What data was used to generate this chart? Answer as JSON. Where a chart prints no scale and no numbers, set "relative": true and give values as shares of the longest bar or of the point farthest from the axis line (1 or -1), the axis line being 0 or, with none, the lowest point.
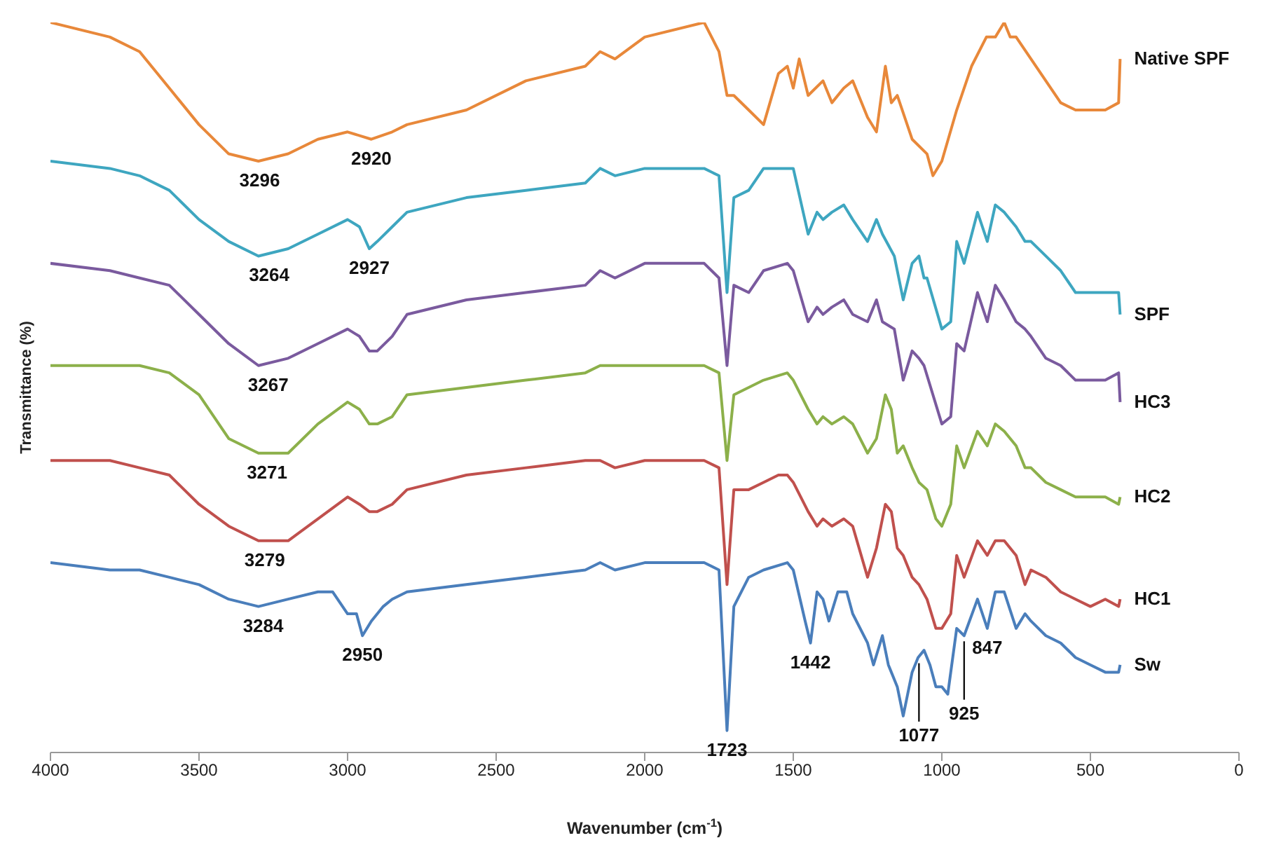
{
  "chart_data": {
    "type": "line",
    "relative": true,
    "xlabel": "Wavenumber (cm$^{-1}$)",
    "ylabel": "Transmittance (%)",
    "xlim": [
      4000,
      0
    ],
    "xticks": [
      4000,
      3500,
      3000,
      2500,
      2000,
      1500,
      1000,
      500,
      0
    ],
    "legend": false,
    "series": [
      {
        "name": "Native SPF",
        "color": "#e8883a",
        "x": [
          4000,
          3800,
          3700,
          3600,
          3500,
          3400,
          3300,
          3200,
          3100,
          3000,
          2920,
          2850,
          2800,
          2600,
          2400,
          2200,
          2150,
          2100,
          2000,
          1800,
          1750,
          1723,
          1700,
          1650,
          1600,
          1550,
          1520,
          1500,
          1480,
          1450,
          1400,
          1370,
          1330,
          1300,
          1250,
          1220,
          1190,
          1170,
          1150,
          1100,
          1050,
          1030,
          1000,
          950,
          900,
          850,
          820,
          790,
          770,
          750,
          700,
          650,
          600,
          550,
          500,
          450,
          405,
          400
        ],
        "values": [
          1.0,
          0.98,
          0.96,
          0.91,
          0.86,
          0.82,
          0.81,
          0.82,
          0.84,
          0.85,
          0.84,
          0.85,
          0.86,
          0.88,
          0.92,
          0.94,
          0.96,
          0.95,
          0.98,
          1.0,
          0.96,
          0.9,
          0.9,
          0.88,
          0.86,
          0.93,
          0.94,
          0.91,
          0.95,
          0.9,
          0.92,
          0.89,
          0.91,
          0.92,
          0.87,
          0.85,
          0.94,
          0.89,
          0.9,
          0.84,
          0.82,
          0.79,
          0.81,
          0.88,
          0.94,
          0.98,
          0.98,
          1.0,
          0.98,
          0.98,
          0.95,
          0.92,
          0.89,
          0.88,
          0.88,
          0.88,
          0.89,
          0.95
        ]
      },
      {
        "name": "SPF",
        "color": "#3ea6c0",
        "x": [
          4000,
          3800,
          3700,
          3600,
          3500,
          3400,
          3300,
          3200,
          3100,
          3000,
          2960,
          2927,
          2900,
          2850,
          2800,
          2600,
          2400,
          2200,
          2150,
          2100,
          2000,
          1800,
          1750,
          1723,
          1700,
          1650,
          1600,
          1520,
          1500,
          1450,
          1420,
          1400,
          1370,
          1330,
          1300,
          1250,
          1220,
          1200,
          1160,
          1130,
          1100,
          1077,
          1060,
          1050,
          1000,
          970,
          950,
          925,
          880,
          847,
          820,
          790,
          750,
          720,
          700,
          650,
          600,
          550,
          500,
          450,
          405,
          400
        ],
        "values": [
          0.81,
          0.8,
          0.79,
          0.77,
          0.73,
          0.7,
          0.68,
          0.69,
          0.71,
          0.73,
          0.72,
          0.69,
          0.7,
          0.72,
          0.74,
          0.76,
          0.77,
          0.78,
          0.8,
          0.79,
          0.8,
          0.8,
          0.79,
          0.63,
          0.76,
          0.77,
          0.8,
          0.8,
          0.8,
          0.71,
          0.74,
          0.73,
          0.74,
          0.75,
          0.73,
          0.7,
          0.73,
          0.71,
          0.68,
          0.62,
          0.67,
          0.68,
          0.65,
          0.65,
          0.58,
          0.59,
          0.7,
          0.67,
          0.74,
          0.7,
          0.75,
          0.74,
          0.72,
          0.7,
          0.7,
          0.68,
          0.66,
          0.63,
          0.63,
          0.63,
          0.63,
          0.6
        ]
      },
      {
        "name": "HC3",
        "color": "#7a5a9e",
        "x": [
          4000,
          3800,
          3700,
          3600,
          3500,
          3400,
          3300,
          3200,
          3100,
          3000,
          2960,
          2927,
          2900,
          2850,
          2800,
          2600,
          2400,
          2200,
          2150,
          2100,
          2000,
          1800,
          1750,
          1723,
          1700,
          1650,
          1600,
          1520,
          1500,
          1450,
          1420,
          1400,
          1370,
          1330,
          1300,
          1250,
          1220,
          1200,
          1160,
          1130,
          1100,
          1077,
          1060,
          1000,
          970,
          950,
          925,
          880,
          847,
          820,
          790,
          750,
          720,
          700,
          650,
          600,
          550,
          500,
          450,
          405,
          400
        ],
        "values": [
          0.67,
          0.66,
          0.65,
          0.64,
          0.6,
          0.56,
          0.53,
          0.54,
          0.56,
          0.58,
          0.57,
          0.55,
          0.55,
          0.57,
          0.6,
          0.62,
          0.63,
          0.64,
          0.66,
          0.65,
          0.67,
          0.67,
          0.65,
          0.53,
          0.64,
          0.63,
          0.66,
          0.67,
          0.66,
          0.59,
          0.61,
          0.6,
          0.61,
          0.62,
          0.6,
          0.59,
          0.62,
          0.59,
          0.58,
          0.51,
          0.55,
          0.54,
          0.53,
          0.45,
          0.46,
          0.56,
          0.55,
          0.63,
          0.59,
          0.64,
          0.62,
          0.59,
          0.58,
          0.57,
          0.54,
          0.53,
          0.51,
          0.51,
          0.51,
          0.52,
          0.48
        ]
      },
      {
        "name": "HC2",
        "color": "#8cb04a",
        "x": [
          4000,
          3800,
          3700,
          3600,
          3500,
          3400,
          3300,
          3200,
          3100,
          3000,
          2960,
          2927,
          2900,
          2850,
          2800,
          2600,
          2400,
          2200,
          2150,
          2100,
          2000,
          1800,
          1750,
          1723,
          1700,
          1650,
          1600,
          1520,
          1500,
          1450,
          1420,
          1400,
          1370,
          1330,
          1300,
          1250,
          1220,
          1190,
          1170,
          1150,
          1130,
          1100,
          1077,
          1050,
          1020,
          1000,
          970,
          950,
          925,
          880,
          847,
          820,
          790,
          750,
          720,
          700,
          650,
          600,
          550,
          500,
          450,
          405,
          400
        ],
        "values": [
          0.53,
          0.53,
          0.53,
          0.52,
          0.49,
          0.43,
          0.41,
          0.41,
          0.45,
          0.48,
          0.47,
          0.45,
          0.45,
          0.46,
          0.49,
          0.5,
          0.51,
          0.52,
          0.53,
          0.53,
          0.53,
          0.53,
          0.52,
          0.4,
          0.49,
          0.5,
          0.51,
          0.52,
          0.51,
          0.47,
          0.45,
          0.46,
          0.45,
          0.46,
          0.45,
          0.41,
          0.43,
          0.49,
          0.47,
          0.41,
          0.42,
          0.39,
          0.37,
          0.36,
          0.32,
          0.31,
          0.34,
          0.42,
          0.39,
          0.44,
          0.42,
          0.45,
          0.44,
          0.42,
          0.39,
          0.39,
          0.37,
          0.36,
          0.35,
          0.35,
          0.35,
          0.34,
          0.35
        ]
      },
      {
        "name": "HC1",
        "color": "#c0504d",
        "x": [
          4000,
          3800,
          3700,
          3600,
          3500,
          3400,
          3300,
          3200,
          3100,
          3000,
          2960,
          2927,
          2900,
          2850,
          2800,
          2600,
          2400,
          2200,
          2150,
          2100,
          2000,
          1800,
          1750,
          1723,
          1700,
          1650,
          1600,
          1550,
          1520,
          1500,
          1450,
          1420,
          1400,
          1370,
          1330,
          1300,
          1250,
          1220,
          1190,
          1170,
          1150,
          1130,
          1100,
          1077,
          1050,
          1020,
          1000,
          970,
          950,
          925,
          880,
          847,
          820,
          790,
          750,
          720,
          700,
          650,
          600,
          550,
          500,
          450,
          405,
          400
        ],
        "values": [
          0.4,
          0.4,
          0.39,
          0.38,
          0.34,
          0.31,
          0.29,
          0.29,
          0.32,
          0.35,
          0.34,
          0.33,
          0.33,
          0.34,
          0.36,
          0.38,
          0.39,
          0.4,
          0.4,
          0.39,
          0.4,
          0.4,
          0.39,
          0.23,
          0.36,
          0.36,
          0.37,
          0.38,
          0.38,
          0.37,
          0.33,
          0.31,
          0.32,
          0.31,
          0.32,
          0.31,
          0.24,
          0.28,
          0.34,
          0.33,
          0.28,
          0.27,
          0.24,
          0.23,
          0.21,
          0.17,
          0.17,
          0.19,
          0.27,
          0.24,
          0.29,
          0.27,
          0.29,
          0.29,
          0.27,
          0.23,
          0.25,
          0.24,
          0.22,
          0.21,
          0.2,
          0.21,
          0.2,
          0.21
        ]
      },
      {
        "name": "Sw",
        "color": "#4a7ebb",
        "x": [
          4000,
          3800,
          3700,
          3600,
          3500,
          3400,
          3300,
          3200,
          3100,
          3050,
          3000,
          2970,
          2950,
          2920,
          2880,
          2850,
          2800,
          2600,
          2400,
          2200,
          2150,
          2100,
          2000,
          1800,
          1750,
          1723,
          1700,
          1650,
          1600,
          1520,
          1500,
          1460,
          1442,
          1420,
          1400,
          1380,
          1350,
          1320,
          1300,
          1250,
          1230,
          1200,
          1180,
          1150,
          1130,
          1100,
          1080,
          1060,
          1040,
          1020,
          1000,
          980,
          950,
          925,
          880,
          847,
          820,
          790,
          750,
          720,
          700,
          650,
          600,
          550,
          500,
          450,
          405,
          400
        ],
        "values": [
          0.26,
          0.25,
          0.25,
          0.24,
          0.23,
          0.21,
          0.2,
          0.21,
          0.22,
          0.22,
          0.19,
          0.19,
          0.16,
          0.18,
          0.2,
          0.21,
          0.22,
          0.23,
          0.24,
          0.25,
          0.26,
          0.25,
          0.26,
          0.26,
          0.25,
          0.03,
          0.2,
          0.24,
          0.25,
          0.26,
          0.25,
          0.18,
          0.15,
          0.22,
          0.21,
          0.18,
          0.22,
          0.22,
          0.19,
          0.15,
          0.12,
          0.16,
          0.12,
          0.09,
          0.05,
          0.11,
          0.13,
          0.14,
          0.12,
          0.09,
          0.09,
          0.08,
          0.17,
          0.16,
          0.21,
          0.17,
          0.22,
          0.22,
          0.17,
          0.19,
          0.18,
          0.16,
          0.15,
          0.13,
          0.12,
          0.11,
          0.11,
          0.12
        ]
      }
    ],
    "annotations": [
      {
        "text": "3296",
        "x": 3296,
        "y": 0.81
      },
      {
        "text": "2920",
        "x": 2920,
        "y": 0.84
      },
      {
        "text": "3264",
        "x": 3264,
        "y": 0.68
      },
      {
        "text": "2927",
        "x": 2927,
        "y": 0.69
      },
      {
        "text": "3267",
        "x": 3267,
        "y": 0.53
      },
      {
        "text": "3271",
        "x": 3271,
        "y": 0.41
      },
      {
        "text": "3279",
        "x": 3279,
        "y": 0.29
      },
      {
        "text": "3284",
        "x": 3284,
        "y": 0.2
      },
      {
        "text": "2950",
        "x": 2950,
        "y": 0.16
      },
      {
        "text": "1723",
        "x": 1723,
        "y": 0.03
      },
      {
        "text": "1442",
        "x": 1442,
        "y": 0.15
      },
      {
        "text": "1077",
        "x": 1077,
        "y": 0.13
      },
      {
        "text": "925",
        "x": 925,
        "y": 0.16
      },
      {
        "text": "847",
        "x": 847,
        "y": 0.17
      }
    ]
  }
}
